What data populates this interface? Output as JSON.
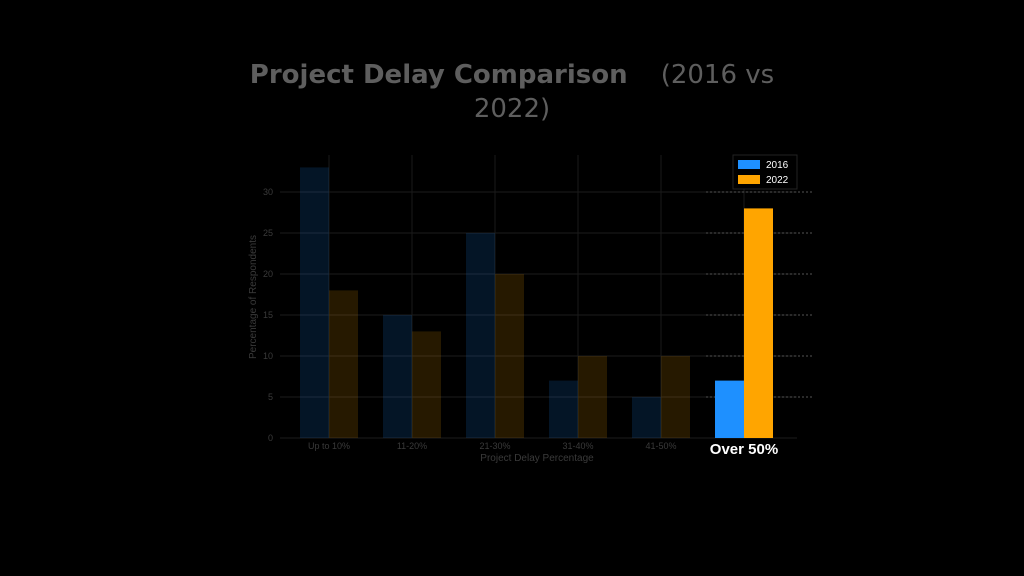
{
  "chart_data": {
    "type": "bar",
    "title_main": "Project Delay Comparison",
    "title_sub": "(2016 vs",
    "title_sub2": "2022)",
    "xlabel": "Project Delay Percentage",
    "ylabel": "Percentage of Respondents",
    "categories": [
      "Up to 10%",
      "11-20%",
      "21-30%",
      "31-40%",
      "41-50%",
      "Over 50%"
    ],
    "highlight_index": 5,
    "yticks": [
      0,
      5,
      10,
      15,
      20,
      25,
      30
    ],
    "ylim": [
      0,
      35
    ],
    "grid": true,
    "legend_position": "top-right",
    "series": [
      {
        "name": "2016",
        "color": "#1e90ff",
        "values": [
          33,
          15,
          25,
          7,
          5,
          7
        ]
      },
      {
        "name": "2022",
        "color": "#ffa500",
        "values": [
          18,
          13,
          20,
          10,
          10,
          28
        ]
      }
    ]
  }
}
